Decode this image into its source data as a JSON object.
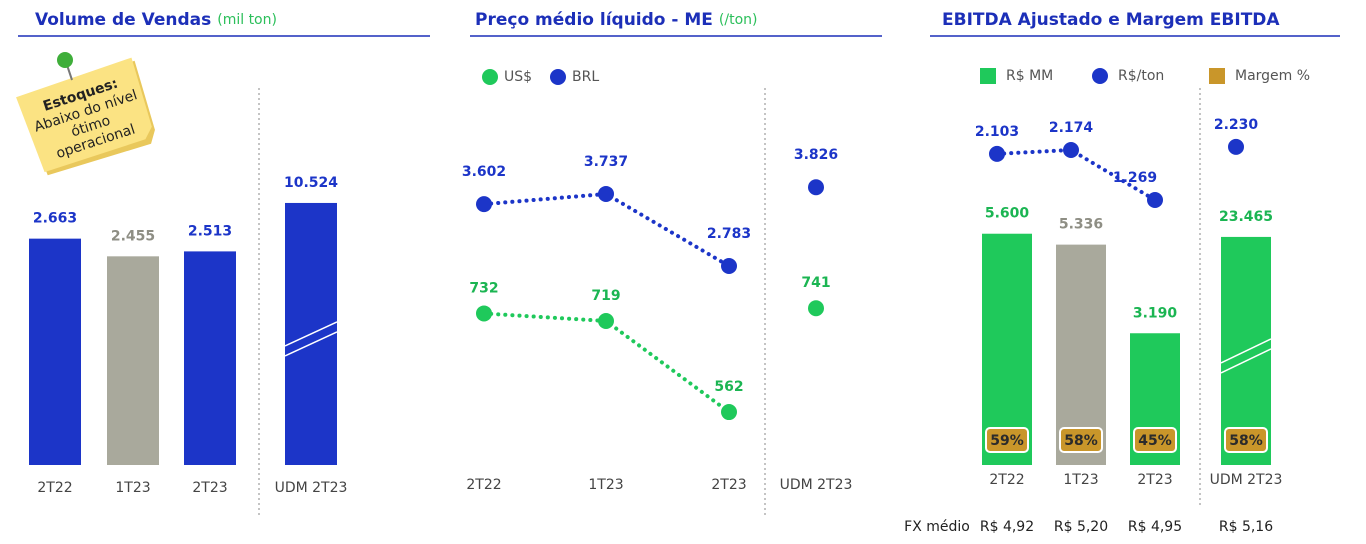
{
  "chart_data": [
    {
      "type": "bar",
      "title": "Volume de Vendas",
      "subtitle": "(mil ton)",
      "note_title": "Estoques:",
      "note_lines": [
        "Abaixo do nível",
        "ótimo",
        "operacional"
      ],
      "categories": [
        "2T22",
        "1T23",
        "2T23",
        "UDM 2T23"
      ],
      "values": [
        2663,
        2455,
        2513,
        10524
      ],
      "value_labels": [
        "2.663",
        "2.455",
        "2.513",
        "10.524"
      ],
      "colors": [
        "#1c35c8",
        "#a9a99c",
        "#1c35c8",
        "#1c35c8"
      ]
    },
    {
      "type": "line",
      "title": "Preço médio líquido - ME",
      "subtitle": "(/ton)",
      "categories": [
        "2T22",
        "1T23",
        "2T23",
        "UDM 2T23"
      ],
      "series": [
        {
          "name": "US$",
          "color": "#1fc95b",
          "values": [
            732,
            719,
            562,
            741
          ],
          "value_labels": [
            "732",
            "719",
            "562",
            "741"
          ]
        },
        {
          "name": "BRL",
          "color": "#1c35c8",
          "values": [
            3602,
            3737,
            2783,
            3826
          ],
          "value_labels": [
            "3.602",
            "3.737",
            "2.783",
            "3.826"
          ]
        }
      ]
    },
    {
      "type": "combo",
      "title": "EBITDA Ajustado e Margem EBITDA",
      "categories": [
        "2T22",
        "1T23",
        "2T23",
        "UDM 2T23"
      ],
      "series": [
        {
          "name": "R$ MM",
          "kind": "bar",
          "color": "#1fc95b",
          "colors": [
            "#1fc95b",
            "#a9a99c",
            "#1fc95b",
            "#1fc95b"
          ],
          "values": [
            5600,
            5336,
            3190,
            23465
          ],
          "value_labels": [
            "5.600",
            "5.336",
            "3.190",
            "23.465"
          ]
        },
        {
          "name": "R$/ton",
          "kind": "dot",
          "color": "#1c35c8",
          "values": [
            2103,
            2174,
            1269,
            2230
          ],
          "value_labels": [
            "2.103",
            "2.174",
            "1.269",
            "2.230"
          ]
        },
        {
          "name": "Margem %",
          "kind": "badge",
          "color": "#c9962a",
          "values": [
            59,
            58,
            45,
            58
          ],
          "value_labels": [
            "59%",
            "58%",
            "45%",
            "58%"
          ]
        }
      ],
      "fx_label": "FX médio",
      "fx_values": [
        "R$ 4,92",
        "R$ 5,20",
        "R$ 4,95",
        "R$ 5,16"
      ]
    }
  ]
}
